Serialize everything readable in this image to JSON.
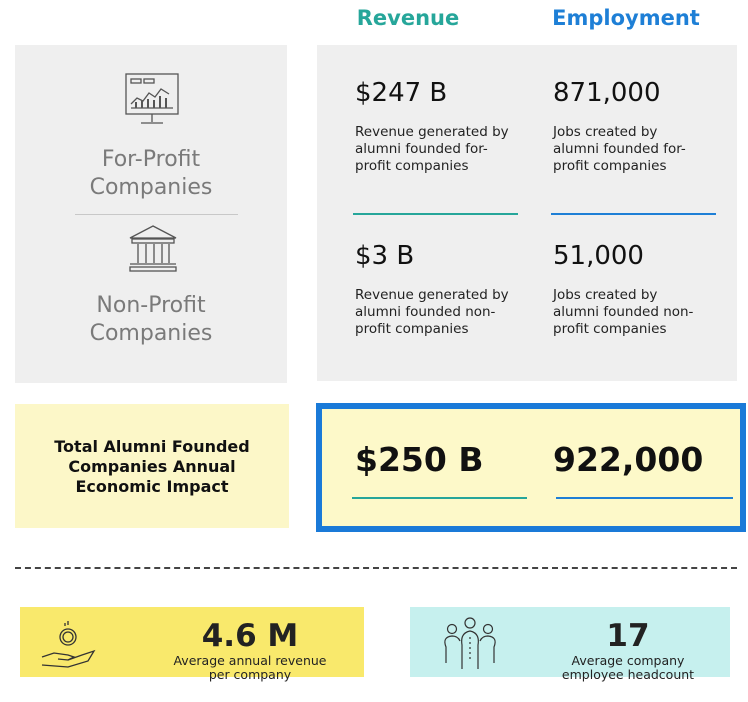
{
  "headers": {
    "revenue": "Revenue",
    "employment": "Employment"
  },
  "segments": [
    {
      "label": [
        "For-Profit",
        "Companies"
      ],
      "revenue": {
        "value": "$247 B",
        "description": [
          "Revenue generated by",
          "alumni founded for-",
          "profit companies"
        ]
      },
      "employment": {
        "value": "871,000",
        "description": [
          "Jobs created by",
          "alumni founded for-",
          "profit companies"
        ]
      }
    },
    {
      "label": [
        "Non-Profit",
        "Companies"
      ],
      "revenue": {
        "value": "$3 B",
        "description": [
          "Revenue generated by",
          "alumni founded non-",
          "profit companies"
        ]
      },
      "employment": {
        "value": "51,000",
        "description": [
          "Jobs created by",
          "alumni founded non-",
          "profit companies"
        ]
      }
    }
  ],
  "total": {
    "label": [
      "Total Alumni Founded",
      "Companies Annual",
      "Economic Impact"
    ],
    "revenue": "$250 B",
    "employment": "922,000"
  },
  "stats": [
    {
      "value": "4.6 M",
      "description": [
        "Average annual revenue",
        "per company"
      ]
    },
    {
      "value": "17",
      "description": [
        "Average company",
        "employee headcount"
      ]
    }
  ]
}
